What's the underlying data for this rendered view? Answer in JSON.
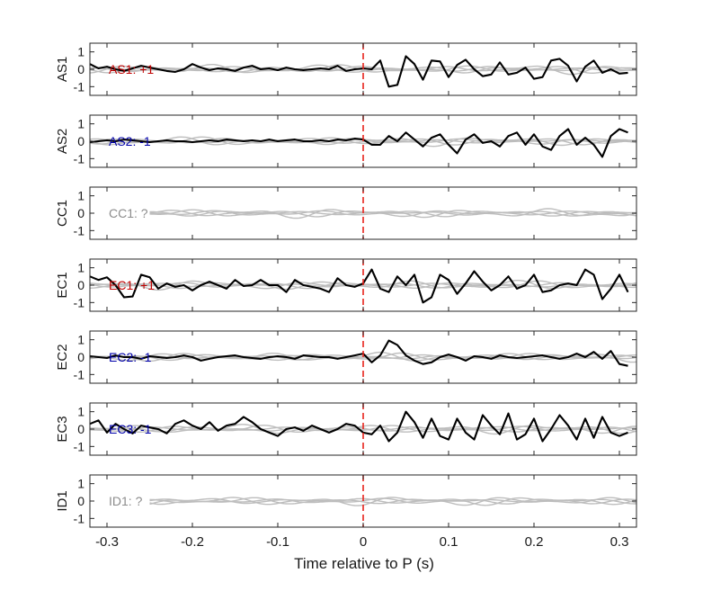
{
  "chart_data": {
    "type": "line",
    "xlabel": "Time relative to P (s)",
    "xlim": [
      -0.32,
      0.32
    ],
    "ylim": [
      -1.5,
      1.5
    ],
    "xticks": [
      -0.3,
      -0.2,
      -0.1,
      0,
      0.1,
      0.2,
      0.3
    ],
    "xtick_labels": [
      "-0.3",
      "-0.2",
      "-0.1",
      "0",
      "0.1",
      "0.2",
      "0.3"
    ],
    "yticks": [
      -1,
      0,
      1
    ],
    "ytick_labels": [
      "-1",
      "0",
      "1"
    ],
    "p_marker_time": 0,
    "colors": {
      "positive": "#c00000",
      "negative": "#0000aa",
      "unknown": "#8c8c8c",
      "trace": "#000000",
      "reference": "#bdbdbd",
      "marker": "#e8231c"
    },
    "panels": [
      {
        "name": "AS1",
        "ylabel": "AS1",
        "annotation": "AS1: +1",
        "polarity": "positive",
        "x": [
          -0.32,
          -0.31,
          -0.3,
          -0.29,
          -0.28,
          -0.27,
          -0.26,
          -0.25,
          -0.24,
          -0.23,
          -0.22,
          -0.21,
          -0.2,
          -0.19,
          -0.18,
          -0.17,
          -0.16,
          -0.15,
          -0.14,
          -0.13,
          -0.12,
          -0.11,
          -0.1,
          -0.09,
          -0.08,
          -0.07,
          -0.06,
          -0.05,
          -0.04,
          -0.03,
          -0.02,
          -0.01,
          0.0,
          0.01,
          0.02,
          0.03,
          0.04,
          0.05,
          0.06,
          0.07,
          0.08,
          0.09,
          0.1,
          0.11,
          0.12,
          0.13,
          0.14,
          0.15,
          0.16,
          0.17,
          0.18,
          0.19,
          0.2,
          0.21,
          0.22,
          0.23,
          0.24,
          0.25,
          0.26,
          0.27,
          0.28,
          0.29,
          0.3,
          0.31
        ],
        "trace": [
          0.3,
          0.05,
          0.15,
          0.0,
          -0.1,
          0.05,
          0.2,
          0.1,
          0.0,
          -0.1,
          -0.15,
          0.0,
          0.3,
          0.1,
          -0.05,
          0.05,
          0.0,
          -0.1,
          0.1,
          0.2,
          0.0,
          0.05,
          -0.05,
          0.1,
          0.0,
          -0.05,
          0.0,
          0.05,
          0.0,
          0.2,
          -0.1,
          0.0,
          0.05,
          0.0,
          0.5,
          -1.0,
          -0.9,
          0.75,
          0.3,
          -0.6,
          0.5,
          0.45,
          -0.45,
          0.25,
          0.55,
          0.0,
          -0.4,
          -0.3,
          0.4,
          -0.3,
          -0.2,
          0.1,
          -0.55,
          -0.45,
          0.5,
          0.6,
          0.2,
          -0.7,
          0.15,
          0.5,
          -0.2,
          0.0,
          -0.25,
          -0.2
        ]
      },
      {
        "name": "AS2",
        "ylabel": "AS2",
        "annotation": "AS2: -1",
        "polarity": "negative",
        "x": [
          -0.32,
          -0.31,
          -0.3,
          -0.29,
          -0.28,
          -0.27,
          -0.26,
          -0.25,
          -0.24,
          -0.23,
          -0.22,
          -0.21,
          -0.2,
          -0.19,
          -0.18,
          -0.17,
          -0.16,
          -0.15,
          -0.14,
          -0.13,
          -0.12,
          -0.11,
          -0.1,
          -0.09,
          -0.08,
          -0.07,
          -0.06,
          -0.05,
          -0.04,
          -0.03,
          -0.02,
          -0.01,
          0.0,
          0.01,
          0.02,
          0.03,
          0.04,
          0.05,
          0.06,
          0.07,
          0.08,
          0.09,
          0.1,
          0.11,
          0.12,
          0.13,
          0.14,
          0.15,
          0.16,
          0.17,
          0.18,
          0.19,
          0.2,
          0.21,
          0.22,
          0.23,
          0.24,
          0.25,
          0.26,
          0.27,
          0.28,
          0.29,
          0.3,
          0.31
        ],
        "trace": [
          -0.05,
          0.0,
          0.05,
          0.0,
          0.1,
          0.05,
          0.0,
          -0.05,
          0.0,
          0.05,
          0.0,
          0.0,
          -0.05,
          0.0,
          0.05,
          0.0,
          0.1,
          0.05,
          0.0,
          0.05,
          0.0,
          0.1,
          0.0,
          0.05,
          0.1,
          0.0,
          0.0,
          0.05,
          0.0,
          0.1,
          0.05,
          0.15,
          0.1,
          -0.2,
          -0.2,
          0.3,
          0.0,
          0.5,
          0.1,
          -0.3,
          0.2,
          0.4,
          -0.2,
          -0.7,
          0.1,
          0.4,
          -0.1,
          0.0,
          -0.3,
          0.3,
          0.5,
          -0.2,
          0.4,
          -0.3,
          -0.5,
          0.3,
          0.7,
          -0.2,
          0.2,
          -0.2,
          -0.9,
          0.3,
          0.7,
          0.5
        ]
      },
      {
        "name": "CC1",
        "ylabel": "CC1",
        "annotation": "CC1: ?",
        "polarity": "unknown",
        "x": [],
        "trace": []
      },
      {
        "name": "EC1",
        "ylabel": "EC1",
        "annotation": "EC1: +1",
        "polarity": "positive",
        "x": [
          -0.32,
          -0.31,
          -0.3,
          -0.29,
          -0.28,
          -0.27,
          -0.26,
          -0.25,
          -0.24,
          -0.23,
          -0.22,
          -0.21,
          -0.2,
          -0.19,
          -0.18,
          -0.17,
          -0.16,
          -0.15,
          -0.14,
          -0.13,
          -0.12,
          -0.11,
          -0.1,
          -0.09,
          -0.08,
          -0.07,
          -0.06,
          -0.05,
          -0.04,
          -0.03,
          -0.02,
          -0.01,
          0.0,
          0.01,
          0.02,
          0.03,
          0.04,
          0.05,
          0.06,
          0.07,
          0.08,
          0.09,
          0.1,
          0.11,
          0.12,
          0.13,
          0.14,
          0.15,
          0.16,
          0.17,
          0.18,
          0.19,
          0.2,
          0.21,
          0.22,
          0.23,
          0.24,
          0.25,
          0.26,
          0.27,
          0.28,
          0.29,
          0.3,
          0.31
        ],
        "trace": [
          0.5,
          0.3,
          0.45,
          0.0,
          -0.7,
          -0.65,
          0.6,
          0.45,
          -0.2,
          0.1,
          -0.1,
          0.0,
          -0.3,
          0.0,
          0.2,
          0.0,
          -0.2,
          0.3,
          -0.05,
          0.0,
          0.3,
          0.0,
          0.0,
          -0.4,
          0.3,
          0.0,
          -0.1,
          -0.2,
          -0.4,
          0.4,
          0.0,
          -0.1,
          0.1,
          0.9,
          -0.2,
          -0.4,
          0.5,
          0.0,
          0.6,
          -1.0,
          -0.7,
          0.6,
          0.3,
          -0.5,
          0.1,
          0.8,
          0.2,
          -0.3,
          0.0,
          0.5,
          -0.2,
          0.0,
          0.6,
          -0.4,
          -0.3,
          0.0,
          0.1,
          0.0,
          0.9,
          0.6,
          -0.8,
          -0.2,
          0.6,
          -0.4
        ]
      },
      {
        "name": "EC2",
        "ylabel": "EC2",
        "annotation": "EC2: -1",
        "polarity": "negative",
        "x": [
          -0.32,
          -0.31,
          -0.3,
          -0.29,
          -0.28,
          -0.27,
          -0.26,
          -0.25,
          -0.24,
          -0.23,
          -0.22,
          -0.21,
          -0.2,
          -0.19,
          -0.18,
          -0.17,
          -0.16,
          -0.15,
          -0.14,
          -0.13,
          -0.12,
          -0.11,
          -0.1,
          -0.09,
          -0.08,
          -0.07,
          -0.06,
          -0.05,
          -0.04,
          -0.03,
          -0.02,
          -0.01,
          0.0,
          0.01,
          0.02,
          0.03,
          0.04,
          0.05,
          0.06,
          0.07,
          0.08,
          0.09,
          0.1,
          0.11,
          0.12,
          0.13,
          0.14,
          0.15,
          0.16,
          0.17,
          0.18,
          0.19,
          0.2,
          0.21,
          0.22,
          0.23,
          0.24,
          0.25,
          0.26,
          0.27,
          0.28,
          0.29,
          0.3,
          0.31
        ],
        "trace": [
          0.05,
          0.0,
          -0.05,
          0.1,
          0.0,
          0.0,
          -0.1,
          0.05,
          0.0,
          -0.05,
          0.0,
          0.1,
          0.0,
          -0.2,
          -0.1,
          0.0,
          0.05,
          0.1,
          0.0,
          -0.05,
          -0.1,
          0.0,
          0.05,
          0.0,
          -0.1,
          0.1,
          0.05,
          0.0,
          0.0,
          -0.1,
          0.0,
          0.1,
          0.2,
          -0.3,
          0.1,
          0.95,
          0.7,
          0.1,
          -0.2,
          -0.4,
          -0.3,
          0.0,
          0.15,
          0.0,
          -0.2,
          0.05,
          0.0,
          -0.1,
          0.1,
          0.0,
          -0.05,
          0.0,
          0.05,
          0.1,
          0.0,
          -0.1,
          0.0,
          0.2,
          0.0,
          0.3,
          -0.1,
          0.35,
          -0.4,
          -0.5
        ]
      },
      {
        "name": "EC3",
        "ylabel": "EC3",
        "annotation": "EC3: -1",
        "polarity": "negative",
        "x": [
          -0.32,
          -0.31,
          -0.3,
          -0.29,
          -0.28,
          -0.27,
          -0.26,
          -0.25,
          -0.24,
          -0.23,
          -0.22,
          -0.21,
          -0.2,
          -0.19,
          -0.18,
          -0.17,
          -0.16,
          -0.15,
          -0.14,
          -0.13,
          -0.12,
          -0.11,
          -0.1,
          -0.09,
          -0.08,
          -0.07,
          -0.06,
          -0.05,
          -0.04,
          -0.03,
          -0.02,
          -0.01,
          0.0,
          0.01,
          0.02,
          0.03,
          0.04,
          0.05,
          0.06,
          0.07,
          0.08,
          0.09,
          0.1,
          0.11,
          0.12,
          0.13,
          0.14,
          0.15,
          0.16,
          0.17,
          0.18,
          0.19,
          0.2,
          0.21,
          0.22,
          0.23,
          0.24,
          0.25,
          0.26,
          0.27,
          0.28,
          0.29,
          0.3,
          0.31
        ],
        "trace": [
          0.3,
          0.5,
          -0.2,
          0.3,
          0.0,
          -0.25,
          0.2,
          0.1,
          0.0,
          -0.25,
          0.3,
          0.5,
          0.2,
          0.0,
          0.4,
          -0.1,
          0.2,
          0.3,
          0.7,
          0.4,
          0.0,
          -0.2,
          -0.4,
          0.0,
          0.1,
          -0.1,
          0.2,
          0.0,
          -0.2,
          0.0,
          0.3,
          0.2,
          -0.2,
          -0.3,
          0.2,
          -0.7,
          -0.2,
          1.0,
          0.4,
          -0.5,
          0.6,
          -0.4,
          -0.6,
          0.6,
          -0.2,
          -0.6,
          0.8,
          0.2,
          -0.3,
          0.9,
          -0.6,
          -0.3,
          0.6,
          -0.7,
          0.0,
          0.8,
          0.2,
          -0.6,
          0.6,
          -0.5,
          0.7,
          -0.2,
          -0.4,
          -0.2
        ]
      },
      {
        "name": "ID1",
        "ylabel": "ID1",
        "annotation": "ID1: ?",
        "polarity": "unknown",
        "x": [],
        "trace": []
      }
    ]
  }
}
